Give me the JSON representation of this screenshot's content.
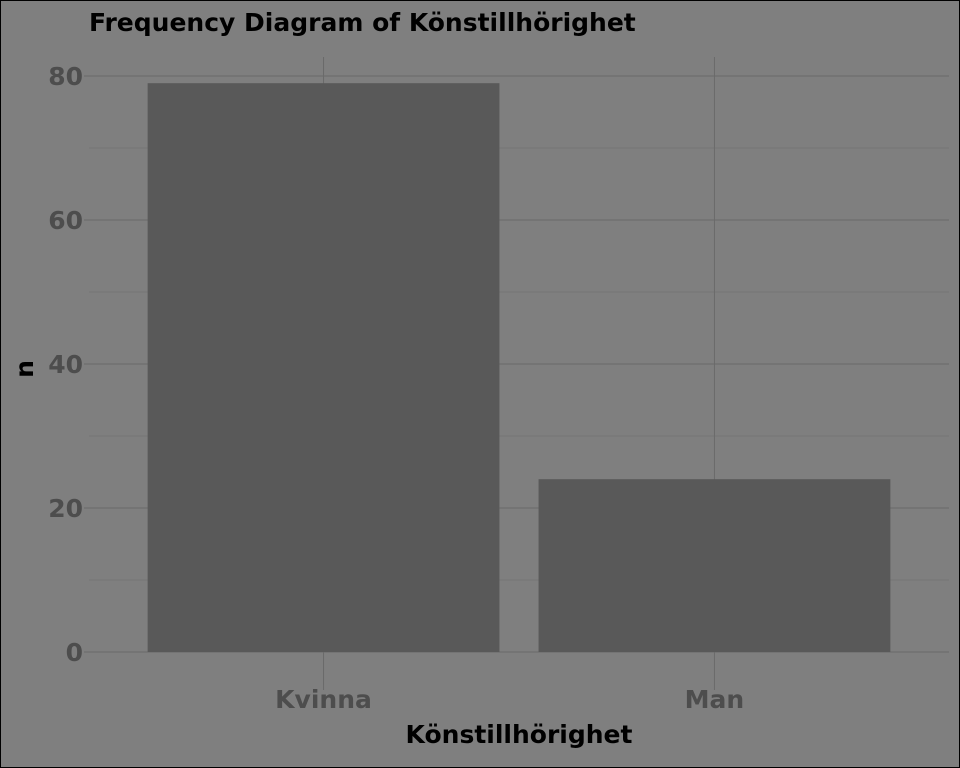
{
  "chart_data": {
    "type": "bar",
    "title": "Frequency Diagram of Könstillhörighet",
    "xlabel": "Könstillhörighet",
    "ylabel": "n",
    "categories": [
      "Kvinna",
      "Man"
    ],
    "values": [
      79,
      24
    ],
    "ylim": [
      0,
      80
    ],
    "yticks": [
      0,
      20,
      40,
      60,
      80
    ],
    "grid": true,
    "legend": "none",
    "colors": {
      "background": "#7f7f7f",
      "bar": "#595959",
      "tick_text": "#4d4d4d",
      "title_text": "#000000"
    }
  }
}
